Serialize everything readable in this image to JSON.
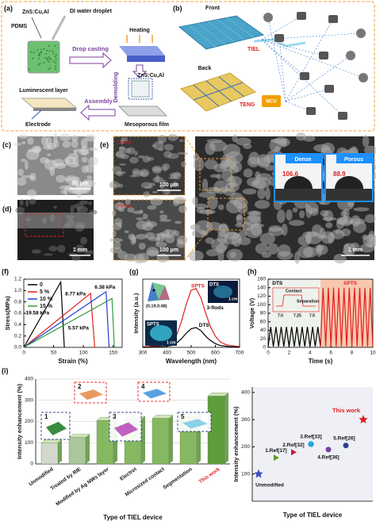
{
  "panels": {
    "a": {
      "label": "(a)",
      "powder": "ZnS:Cu,Al",
      "pdms": "PDMS",
      "droplet": "DI water droplet",
      "drop_casting": "Drop casting",
      "heating": "Heating",
      "demolding": "Demolding",
      "powder2": "ZnS:Cu,Al",
      "mesoporous": "Mesoporous film",
      "assembly": "Assembly",
      "luminescent": "Luminescent layer",
      "electrode": "Electrode"
    },
    "b": {
      "label": "(b)",
      "front": "Front",
      "tiel": "TIEL",
      "back": "Back",
      "teng": "TENG",
      "mcu": "MCU"
    },
    "c": {
      "label": "(c)",
      "scale": "50 μm"
    },
    "d": {
      "label": "(d)",
      "scale": "1 mm"
    },
    "e": {
      "label": "(e)",
      "dense_tag": "Dense",
      "porous_tag": "Porous",
      "scale_top": "100 μm",
      "scale_bottom": "100 μm",
      "scale_main": "1 mm",
      "dense": "Dense",
      "dense_angle": 106.6,
      "porous": "Porous",
      "porous_angle": 88.9
    },
    "f": {
      "label": "(f)"
    },
    "g": {
      "label": "(g)",
      "cie": "(0.19,0.48)",
      "dts_photo": "DTS",
      "spts_photo": "SPTS",
      "photo_scale": "1 cm",
      "photo_scale2": "1 cm"
    },
    "h": {
      "label": "(h)",
      "contact": "Contact",
      "separation": "Separation",
      "inset_ticks": [
        "7.0",
        "7.25",
        "7.5"
      ]
    },
    "i": {
      "label": "(i)",
      "insets": [
        "1",
        "2",
        "3",
        "4",
        "5"
      ]
    }
  },
  "chart_data": [
    {
      "type": "line",
      "x_label": "Strain (%)",
      "y_label": "Stress(MPa)",
      "xlim": [
        0,
        165
      ],
      "xticks": [
        0,
        50,
        100,
        150
      ],
      "ylim": [
        0,
        1.2
      ],
      "yticks": [
        {
          "value": 0,
          "label": "0.0"
        },
        0.2,
        0.4,
        0.6,
        0.8,
        {
          "value": 1,
          "label": "1.0"
        },
        1.2
      ],
      "legend": "upper left",
      "series": [
        {
          "name": "0",
          "color": "#000000",
          "x": [
            0,
            62,
            68
          ],
          "values": [
            0,
            1.15,
            0
          ]
        },
        {
          "name": "5 %",
          "color": "#e02020",
          "x": [
            0,
            112,
            119
          ],
          "values": [
            0,
            0.95,
            0
          ]
        },
        {
          "name": "10 %",
          "color": "#2040d0",
          "x": [
            0,
            138,
            143
          ],
          "values": [
            0,
            0.98,
            0
          ]
        },
        {
          "name": "15 %",
          "color": "#2e9c3a",
          "x": [
            0,
            148,
            152
          ],
          "values": [
            0,
            0.86,
            0
          ]
        }
      ],
      "annotations": [
        "19.58 kPa",
        "8.77 kPa",
        "6.38 kPa",
        "5.57 kPa"
      ]
    },
    {
      "type": "line",
      "x_label": "Wavelength (nm)",
      "y_label": "Intensity (a.u.)",
      "xlim": [
        300,
        700
      ],
      "xticks": [
        300,
        400,
        500,
        600,
        700
      ],
      "ylim": [
        0,
        1.1
      ],
      "x": [
        300,
        320,
        340,
        360,
        380,
        400,
        420,
        440,
        460,
        480,
        500,
        520,
        540,
        560,
        580,
        600,
        620,
        640,
        660,
        680,
        700
      ],
      "series": [
        {
          "name": "SPTS",
          "color": "#e02020",
          "values": [
            0.01,
            0.01,
            0.02,
            0.02,
            0.03,
            0.05,
            0.09,
            0.2,
            0.42,
            0.7,
            0.92,
            0.95,
            0.8,
            0.55,
            0.33,
            0.18,
            0.09,
            0.05,
            0.03,
            0.02,
            0.01
          ]
        },
        {
          "name": "DTS",
          "color": "#000000",
          "values": [
            0,
            0,
            0.01,
            0.01,
            0.01,
            0.02,
            0.03,
            0.07,
            0.14,
            0.23,
            0.3,
            0.32,
            0.27,
            0.18,
            0.11,
            0.06,
            0.03,
            0.02,
            0.01,
            0.01,
            0
          ]
        }
      ],
      "annotations": [
        "SPTS",
        "3-flods",
        "DTS"
      ]
    },
    {
      "type": "line",
      "x_label": "Time (s)",
      "y_label": "Voltage (V)",
      "xlim": [
        0,
        10
      ],
      "xticks": [
        0,
        2,
        4,
        6,
        8,
        10
      ],
      "ylim": [
        0,
        160
      ],
      "yticks": [
        0,
        20,
        40,
        60,
        80,
        100,
        120,
        140,
        160
      ],
      "series": [
        {
          "name": "DTS",
          "color": "#000000",
          "x": [
            0,
            0.25,
            0.5,
            0.75,
            1,
            1.25,
            1.5,
            1.75,
            2,
            2.25,
            2.5,
            2.75,
            3,
            3.25,
            3.5,
            3.75,
            4,
            4.25,
            4.5,
            4.75,
            5
          ],
          "values": [
            2,
            48,
            2,
            48,
            2,
            48,
            2,
            48,
            2,
            48,
            2,
            48,
            2,
            48,
            2,
            48,
            2,
            48,
            2,
            48,
            2
          ]
        },
        {
          "name": "SPTS",
          "color": "#e02020",
          "x": [
            5,
            5.25,
            5.5,
            5.75,
            6,
            6.25,
            6.5,
            6.75,
            7,
            7.25,
            7.5,
            7.75,
            8,
            8.25,
            8.5,
            8.75,
            9,
            9.25,
            9.5,
            9.75,
            10
          ],
          "values": [
            2,
            140,
            2,
            140,
            2,
            140,
            2,
            140,
            2,
            140,
            2,
            140,
            2,
            140,
            2,
            140,
            2,
            140,
            2,
            140,
            2
          ]
        }
      ],
      "annotations": [
        "DTS",
        "SPTS"
      ]
    },
    {
      "type": "bar",
      "y_label": "Intensity enhancement (%)",
      "x_label": "Type of TIEL device",
      "categories": [
        "Unmodified",
        "Treated by RIE",
        "Modified by Ag NWs layer",
        "Electret",
        "Microsized contact",
        "Segmentation",
        "This work"
      ],
      "values": [
        100,
        125,
        205,
        210,
        215,
        225,
        320
      ],
      "colors": [
        "#d2d8cc",
        "#a9c79a",
        "#86b862",
        "#86b862",
        "#86b862",
        "#86b862",
        "#5e9e3a"
      ],
      "ylim": [
        0,
        400
      ],
      "yticks": [
        0,
        100,
        200,
        300,
        400
      ],
      "grid": true
    },
    {
      "type": "scatter",
      "y_label": "Intensity enhancement (%)",
      "x_label": "Type of TIEL device",
      "categories": [
        "Unmodified",
        "1.Ref[17]",
        "2.Ref[32]",
        "3.Ref[33]",
        "4.Ref[36]",
        "5.Ref[26]",
        "This work"
      ],
      "values": [
        100,
        160,
        180,
        210,
        190,
        205,
        300
      ],
      "colors": [
        "#3b4fbf",
        "#5aa02c",
        "#c0203a",
        "#21a8d8",
        "#7b3fa0",
        "#2a3f90",
        "#e02020"
      ],
      "markers": [
        "star",
        "triangle",
        "triangle",
        "hexagon",
        "circle",
        "circle",
        "star"
      ],
      "ylim": [
        0,
        420
      ],
      "yticks": [
        100,
        200,
        300,
        400
      ]
    }
  ]
}
